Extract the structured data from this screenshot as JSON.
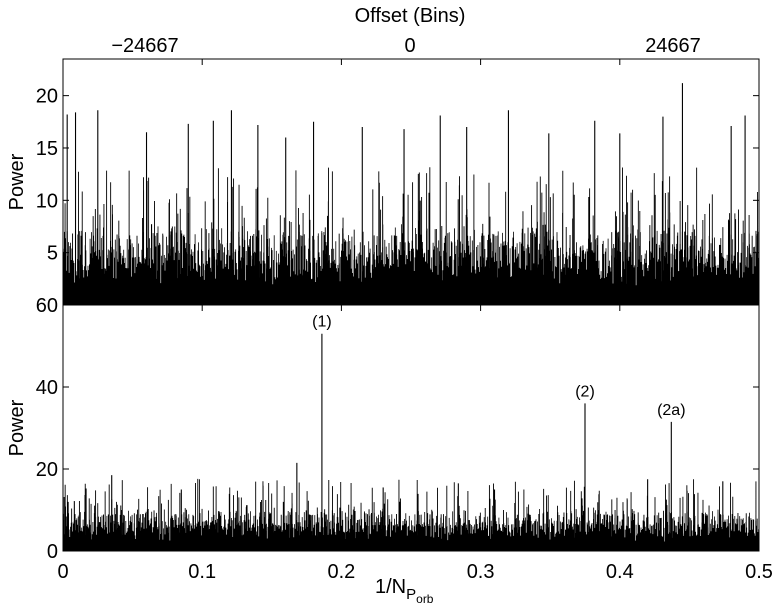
{
  "chart_data": [
    {
      "type": "bar",
      "panel": "top",
      "xlabel": "",
      "ylabel": "Power",
      "top_xlabel": "Offset (Bins)",
      "top_xticks": [
        -24667,
        0,
        24667
      ],
      "top_xtick_labels": [
        "−24667",
        "0",
        "24667"
      ],
      "xlim": [
        0,
        0.5
      ],
      "ylim": [
        0,
        23.5
      ],
      "yticks": [
        5,
        10,
        15,
        20
      ],
      "ytick_labels": [
        "5",
        "10",
        "15",
        "20"
      ],
      "noise_level": 6,
      "peaks": [
        {
          "x": 0.003,
          "value": 18.2
        },
        {
          "x": 0.009,
          "value": 18.4
        },
        {
          "x": 0.025,
          "value": 18.6
        },
        {
          "x": 0.06,
          "value": 16.5
        },
        {
          "x": 0.09,
          "value": 17.3
        },
        {
          "x": 0.108,
          "value": 17.6
        },
        {
          "x": 0.121,
          "value": 18.6
        },
        {
          "x": 0.14,
          "value": 17.2
        },
        {
          "x": 0.16,
          "value": 16.0
        },
        {
          "x": 0.18,
          "value": 17.5
        },
        {
          "x": 0.215,
          "value": 17.0
        },
        {
          "x": 0.245,
          "value": 16.8
        },
        {
          "x": 0.271,
          "value": 18.1
        },
        {
          "x": 0.29,
          "value": 17.0
        },
        {
          "x": 0.32,
          "value": 18.6
        },
        {
          "x": 0.349,
          "value": 16.4
        },
        {
          "x": 0.382,
          "value": 17.6
        },
        {
          "x": 0.4,
          "value": 16.4
        },
        {
          "x": 0.431,
          "value": 18.0
        },
        {
          "x": 0.445,
          "value": 21.2
        },
        {
          "x": 0.48,
          "value": 17.1
        },
        {
          "x": 0.49,
          "value": 18.1
        }
      ]
    },
    {
      "type": "bar",
      "panel": "bottom",
      "xlabel": "1/N",
      "xlabel_sub": "P",
      "xlabel_subsub": "orb",
      "ylabel": "Power",
      "xlim": [
        0,
        0.5
      ],
      "ylim": [
        0,
        60
      ],
      "xticks": [
        0,
        0.1,
        0.2,
        0.3,
        0.4,
        0.5
      ],
      "xtick_labels": [
        "0",
        "0.1",
        "0.2",
        "0.3",
        "0.4",
        "0.5"
      ],
      "yticks": [
        0,
        20,
        40,
        60
      ],
      "ytick_labels": [
        "0",
        "20",
        "40",
        "60"
      ],
      "noise_level": 8,
      "peaks": [
        {
          "x": 0.035,
          "value": 18.5
        },
        {
          "x": 0.085,
          "value": 15.0
        },
        {
          "x": 0.168,
          "value": 21.5
        },
        {
          "x": 0.186,
          "value": 53.0,
          "label": "(1)"
        },
        {
          "x": 0.23,
          "value": 15.5
        },
        {
          "x": 0.284,
          "value": 16.5
        },
        {
          "x": 0.31,
          "value": 15.0
        },
        {
          "x": 0.375,
          "value": 36.0,
          "label": "(2)"
        },
        {
          "x": 0.42,
          "value": 17.5
        },
        {
          "x": 0.437,
          "value": 31.5,
          "label": "(2a)"
        },
        {
          "x": 0.474,
          "value": 17.0
        }
      ]
    }
  ]
}
